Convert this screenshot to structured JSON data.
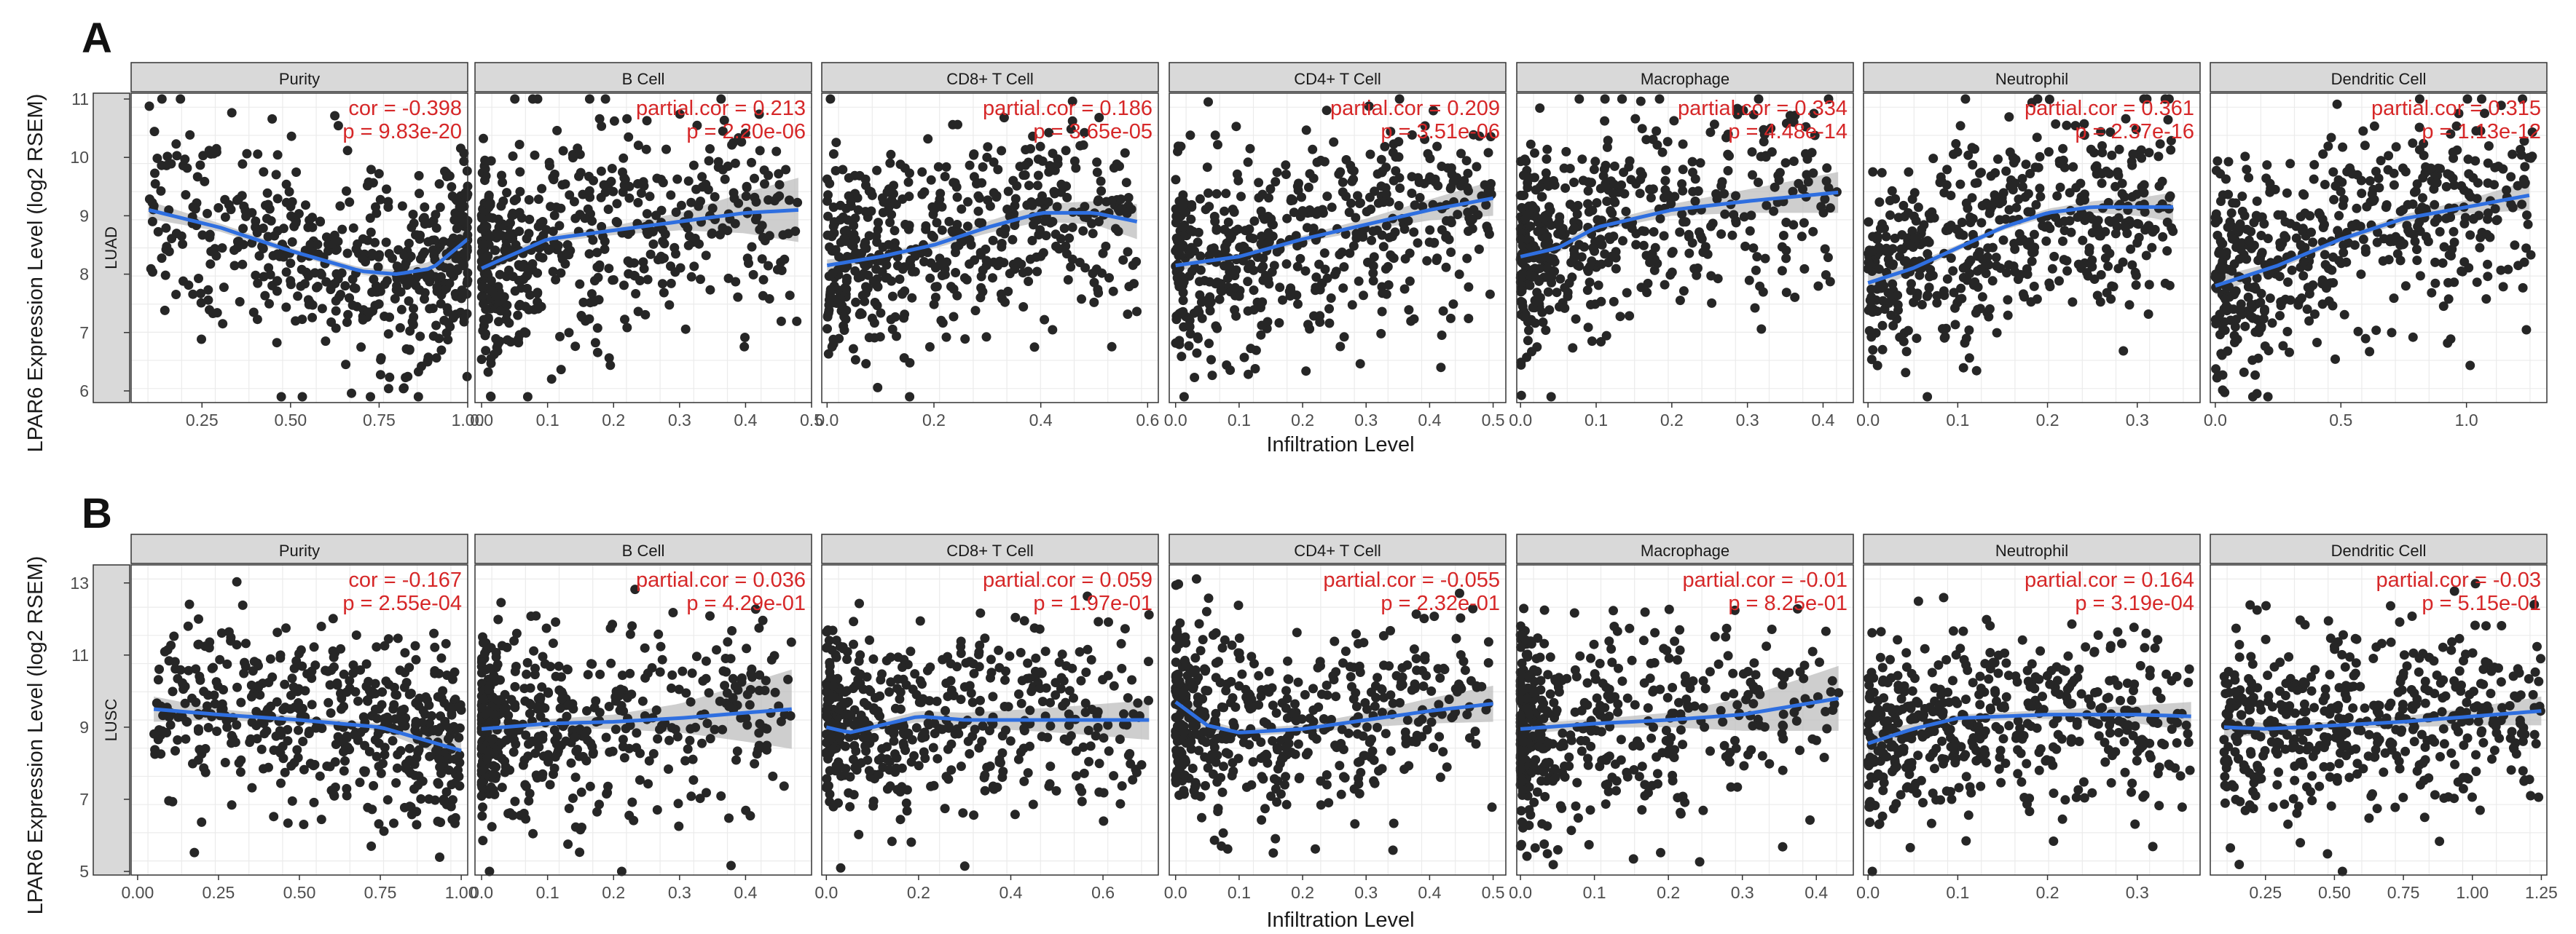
{
  "figure": {
    "panel_labels": [
      "A",
      "B"
    ],
    "ylabel": "LPAR6 Expression Level (log2 RSEM)",
    "xlabel": "Infiltration Level",
    "colors": {
      "points": "#262626",
      "fit": "#2f6fe0",
      "band": "#bdbdbd",
      "stat": "#d62728",
      "strip": "#d9d9d9",
      "grid": "#ebebeb"
    }
  },
  "chart_data": [
    {
      "type": "scatter",
      "panel": "A",
      "row_label": "LUAD",
      "ylabel": "LPAR6 Expression Level (log2 RSEM)",
      "xlabel": "Infiltration Level",
      "ylim": [
        5.8,
        11.1
      ],
      "yticks": [
        6,
        7,
        8,
        9,
        10,
        11
      ],
      "n_points": 520,
      "facets": [
        {
          "title": "Purity",
          "stat_label": "cor = -0.398",
          "p_label": "p = 9.83e-20",
          "xlim": [
            0.05,
            1.0
          ],
          "xticks": [
            0.25,
            0.5,
            0.75,
            1.0
          ],
          "xtick_labels": [
            "0.25",
            "0.50",
            "0.75",
            "1.00"
          ],
          "x_min": 0.1,
          "x_max": 1.0,
          "x_skew": 1.6,
          "x_reverse": true,
          "y_mean": 8.5,
          "y_sd": 0.85,
          "fit_x": [
            0.1,
            0.3,
            0.5,
            0.7,
            0.8,
            0.9,
            1.0
          ],
          "fit_y": [
            9.1,
            8.8,
            8.4,
            8.05,
            8.0,
            8.1,
            8.6
          ],
          "band_hw": [
            0.15,
            0.07,
            0.05,
            0.06,
            0.08,
            0.12,
            0.25
          ]
        },
        {
          "title": "B Cell",
          "stat_label": "partial.cor = 0.213",
          "p_label": "p = 2.20e-06",
          "xlim": [
            -0.01,
            0.5
          ],
          "xticks": [
            0,
            0.1,
            0.2,
            0.3,
            0.4,
            0.5
          ],
          "xtick_labels": [
            "0.0",
            "0.1",
            "0.2",
            "0.3",
            "0.4",
            "0.5"
          ],
          "x_min": 0.0,
          "x_max": 0.48,
          "x_skew": 1.8,
          "x_reverse": false,
          "y_mean": 8.5,
          "y_sd": 0.9,
          "fit_x": [
            0.0,
            0.1,
            0.2,
            0.3,
            0.4,
            0.48
          ],
          "fit_y": [
            8.1,
            8.6,
            8.75,
            8.9,
            9.05,
            9.1
          ],
          "band_hw": [
            0.12,
            0.06,
            0.08,
            0.15,
            0.35,
            0.55
          ]
        },
        {
          "title": "CD8+ T Cell",
          "stat_label": "partial.cor = 0.186",
          "p_label": "p = 3.65e-05",
          "xlim": [
            -0.01,
            0.62
          ],
          "xticks": [
            0,
            0.2,
            0.4,
            0.6
          ],
          "xtick_labels": [
            "0.0",
            "0.2",
            "0.4",
            "0.6"
          ],
          "x_min": 0.0,
          "x_max": 0.58,
          "x_skew": 1.5,
          "x_reverse": false,
          "y_mean": 8.5,
          "y_sd": 0.85,
          "fit_x": [
            0.0,
            0.1,
            0.2,
            0.3,
            0.4,
            0.5,
            0.58
          ],
          "fit_y": [
            8.15,
            8.3,
            8.5,
            8.8,
            9.05,
            9.05,
            8.9
          ],
          "band_hw": [
            0.1,
            0.05,
            0.06,
            0.1,
            0.15,
            0.2,
            0.3
          ]
        },
        {
          "title": "CD4+ T Cell",
          "stat_label": "partial.cor = 0.209",
          "p_label": "p = 3.51e-06",
          "xlim": [
            -0.01,
            0.52
          ],
          "xticks": [
            0,
            0.1,
            0.2,
            0.3,
            0.4,
            0.5
          ],
          "xtick_labels": [
            "0.0",
            "0.1",
            "0.2",
            "0.3",
            "0.4",
            "0.5"
          ],
          "x_min": 0.0,
          "x_max": 0.5,
          "x_skew": 1.4,
          "x_reverse": false,
          "y_mean": 8.4,
          "y_sd": 0.85,
          "fit_x": [
            0.0,
            0.1,
            0.2,
            0.3,
            0.4,
            0.5
          ],
          "fit_y": [
            8.15,
            8.3,
            8.6,
            8.85,
            9.1,
            9.3
          ],
          "band_hw": [
            0.1,
            0.05,
            0.06,
            0.1,
            0.18,
            0.3
          ]
        },
        {
          "title": "Macrophage",
          "stat_label": "partial.cor = 0.334",
          "p_label": "p = 4.48e-14",
          "xlim": [
            -0.005,
            0.44
          ],
          "xticks": [
            0,
            0.1,
            0.2,
            0.3,
            0.4
          ],
          "xtick_labels": [
            "0.0",
            "0.1",
            "0.2",
            "0.3",
            "0.4"
          ],
          "x_min": 0.0,
          "x_max": 0.42,
          "x_skew": 2.0,
          "x_reverse": false,
          "y_mean": 8.7,
          "y_sd": 0.9,
          "fit_x": [
            0.0,
            0.05,
            0.1,
            0.2,
            0.3,
            0.42
          ],
          "fit_y": [
            8.3,
            8.45,
            8.8,
            9.1,
            9.25,
            9.4
          ],
          "band_hw": [
            0.15,
            0.08,
            0.07,
            0.1,
            0.2,
            0.35
          ]
        },
        {
          "title": "Neutrophil",
          "stat_label": "partial.cor = 0.361",
          "p_label": "p = 2.37e-16",
          "xlim": [
            -0.005,
            0.37
          ],
          "xticks": [
            0,
            0.1,
            0.2,
            0.3
          ],
          "xtick_labels": [
            "0.0",
            "0.1",
            "0.2",
            "0.3"
          ],
          "x_min": 0.0,
          "x_max": 0.34,
          "x_skew": 1.3,
          "x_reverse": false,
          "y_mean": 8.6,
          "y_sd": 0.85,
          "fit_x": [
            0.0,
            0.05,
            0.1,
            0.15,
            0.2,
            0.25,
            0.3,
            0.34
          ],
          "fit_y": [
            7.85,
            8.1,
            8.45,
            8.8,
            9.05,
            9.15,
            9.15,
            9.15
          ],
          "band_hw": [
            0.15,
            0.08,
            0.05,
            0.05,
            0.07,
            0.1,
            0.15,
            0.25
          ]
        },
        {
          "title": "Dendritic Cell",
          "stat_label": "partial.cor = 0.315",
          "p_label": "p = 1.13e-12",
          "xlim": [
            -0.02,
            1.32
          ],
          "xticks": [
            0,
            0.5,
            1.0
          ],
          "xtick_labels": [
            "0.0",
            "0.5",
            "1.0"
          ],
          "x_min": 0.0,
          "x_max": 1.28,
          "x_skew": 1.5,
          "x_reverse": false,
          "y_mean": 8.5,
          "y_sd": 0.9,
          "fit_x": [
            0.0,
            0.25,
            0.5,
            0.75,
            1.0,
            1.25
          ],
          "fit_y": [
            7.8,
            8.15,
            8.6,
            8.95,
            9.15,
            9.35
          ],
          "band_hw": [
            0.15,
            0.07,
            0.05,
            0.07,
            0.12,
            0.25
          ]
        }
      ]
    },
    {
      "type": "scatter",
      "panel": "B",
      "row_label": "LUSC",
      "ylabel": "LPAR6 Expression Level (log2 RSEM)",
      "xlabel": "Infiltration Level",
      "ylim": [
        4.9,
        13.5
      ],
      "yticks": [
        5,
        7,
        9,
        11,
        13
      ],
      "n_points": 500,
      "facets": [
        {
          "title": "Purity",
          "stat_label": "cor = -0.167",
          "p_label": "p = 2.55e-04",
          "xlim": [
            -0.02,
            1.02
          ],
          "xticks": [
            0,
            0.25,
            0.5,
            0.75,
            1.0
          ],
          "xtick_labels": [
            "0.00",
            "0.25",
            "0.50",
            "0.75",
            "1.00"
          ],
          "x_min": 0.05,
          "x_max": 1.0,
          "x_skew": 1.3,
          "x_reverse": true,
          "y_mean": 9.1,
          "y_sd": 1.25,
          "fit_x": [
            0.05,
            0.25,
            0.5,
            0.75,
            1.0
          ],
          "fit_y": [
            9.5,
            9.35,
            9.2,
            9.0,
            8.35
          ],
          "band_hw": [
            0.35,
            0.15,
            0.1,
            0.1,
            0.35
          ]
        },
        {
          "title": "B Cell",
          "stat_label": "partial.cor = 0.036",
          "p_label": "p = 4.29e-01",
          "xlim": [
            -0.01,
            0.5
          ],
          "xticks": [
            0,
            0.1,
            0.2,
            0.3,
            0.4
          ],
          "xtick_labels": [
            "0.0",
            "0.1",
            "0.2",
            "0.3",
            "0.4"
          ],
          "x_min": 0.0,
          "x_max": 0.47,
          "x_skew": 2.2,
          "x_reverse": false,
          "y_mean": 9.0,
          "y_sd": 1.3,
          "fit_x": [
            0.0,
            0.1,
            0.2,
            0.3,
            0.4,
            0.47
          ],
          "fit_y": [
            8.95,
            9.1,
            9.15,
            9.25,
            9.4,
            9.5
          ],
          "band_hw": [
            0.15,
            0.12,
            0.2,
            0.4,
            0.8,
            1.1
          ]
        },
        {
          "title": "CD8+ T Cell",
          "stat_label": "partial.cor = 0.059",
          "p_label": "p = 1.97e-01",
          "xlim": [
            -0.01,
            0.72
          ],
          "xticks": [
            0,
            0.2,
            0.4,
            0.6
          ],
          "xtick_labels": [
            "0.0",
            "0.2",
            "0.4",
            "0.6"
          ],
          "x_min": 0.0,
          "x_max": 0.7,
          "x_skew": 1.9,
          "x_reverse": false,
          "y_mean": 9.0,
          "y_sd": 1.3,
          "fit_x": [
            0.0,
            0.05,
            0.1,
            0.2,
            0.3,
            0.5,
            0.7
          ],
          "fit_y": [
            9.0,
            8.85,
            9.0,
            9.3,
            9.2,
            9.2,
            9.2
          ],
          "band_hw": [
            0.3,
            0.15,
            0.12,
            0.15,
            0.2,
            0.35,
            0.55
          ]
        },
        {
          "title": "CD4+ T Cell",
          "stat_label": "partial.cor = -0.055",
          "p_label": "p = 2.32e-01",
          "xlim": [
            -0.01,
            0.52
          ],
          "xticks": [
            0,
            0.1,
            0.2,
            0.3,
            0.4,
            0.5
          ],
          "xtick_labels": [
            "0.0",
            "0.1",
            "0.2",
            "0.3",
            "0.4",
            "0.5"
          ],
          "x_min": 0.0,
          "x_max": 0.5,
          "x_skew": 1.8,
          "x_reverse": false,
          "y_mean": 9.0,
          "y_sd": 1.3,
          "fit_x": [
            0.0,
            0.05,
            0.1,
            0.2,
            0.3,
            0.4,
            0.5
          ],
          "fit_y": [
            9.7,
            9.05,
            8.85,
            8.95,
            9.2,
            9.45,
            9.65
          ],
          "band_hw": [
            0.4,
            0.15,
            0.1,
            0.12,
            0.2,
            0.35,
            0.5
          ]
        },
        {
          "title": "Macrophage",
          "stat_label": "partial.cor = -0.01",
          "p_label": "p = 8.25e-01",
          "xlim": [
            -0.005,
            0.45
          ],
          "xticks": [
            0,
            0.1,
            0.2,
            0.3,
            0.4
          ],
          "xtick_labels": [
            "0.0",
            "0.1",
            "0.2",
            "0.3",
            "0.4"
          ],
          "x_min": 0.0,
          "x_max": 0.43,
          "x_skew": 2.5,
          "x_reverse": false,
          "y_mean": 9.0,
          "y_sd": 1.3,
          "fit_x": [
            0.0,
            0.1,
            0.2,
            0.3,
            0.43
          ],
          "fit_y": [
            8.95,
            9.1,
            9.2,
            9.35,
            9.8
          ],
          "band_hw": [
            0.15,
            0.12,
            0.2,
            0.45,
            0.9
          ]
        },
        {
          "title": "Neutrophil",
          "stat_label": "partial.cor = 0.164",
          "p_label": "p = 3.19e-04",
          "xlim": [
            -0.005,
            0.37
          ],
          "xticks": [
            0,
            0.1,
            0.2,
            0.3
          ],
          "xtick_labels": [
            "0.0",
            "0.1",
            "0.2",
            "0.3"
          ],
          "x_min": 0.0,
          "x_max": 0.36,
          "x_skew": 1.6,
          "x_reverse": false,
          "y_mean": 9.0,
          "y_sd": 1.25,
          "fit_x": [
            0.0,
            0.05,
            0.1,
            0.2,
            0.3,
            0.36
          ],
          "fit_y": [
            8.55,
            8.95,
            9.25,
            9.35,
            9.35,
            9.3
          ],
          "band_hw": [
            0.3,
            0.15,
            0.1,
            0.12,
            0.25,
            0.4
          ]
        },
        {
          "title": "Dendritic Cell",
          "stat_label": "partial.cor = -0.03",
          "p_label": "p = 5.15e-01",
          "xlim": [
            0.05,
            1.27
          ],
          "xticks": [
            0.25,
            0.5,
            0.75,
            1.0,
            1.25
          ],
          "xtick_labels": [
            "0.25",
            "0.50",
            "0.75",
            "1.00",
            "1.25"
          ],
          "x_min": 0.1,
          "x_max": 1.25,
          "x_skew": 1.3,
          "x_reverse": false,
          "y_mean": 9.0,
          "y_sd": 1.25,
          "fit_x": [
            0.1,
            0.25,
            0.5,
            0.75,
            1.0,
            1.25
          ],
          "fit_y": [
            9.0,
            8.95,
            9.05,
            9.15,
            9.3,
            9.45
          ],
          "band_hw": [
            0.3,
            0.15,
            0.1,
            0.15,
            0.25,
            0.4
          ]
        }
      ]
    }
  ]
}
